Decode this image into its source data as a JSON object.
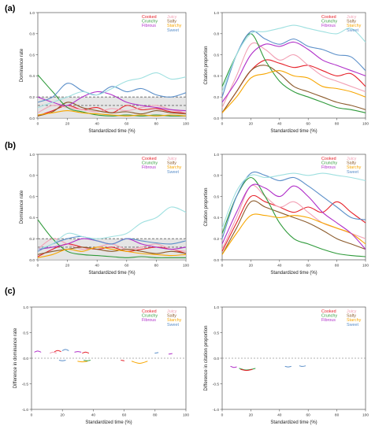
{
  "panel_labels": [
    "(a)",
    "(b)",
    "(c)"
  ],
  "chart_data": [
    {
      "type": "line",
      "panel": "(a)",
      "side": "left",
      "xlabel": "Standardized time (%)",
      "ylabel": "Dominance rate",
      "xlim": [
        0,
        100
      ],
      "ylim": [
        0,
        1
      ],
      "xticks": [
        0,
        20,
        40,
        60,
        80,
        100
      ],
      "yticks": [
        0.0,
        0.2,
        0.4,
        0.6,
        0.8,
        1.0
      ],
      "band": [
        0,
        0.2
      ],
      "reference_lines": [
        0.2,
        0.12
      ],
      "x": [
        0,
        10,
        20,
        30,
        40,
        50,
        60,
        70,
        80,
        90,
        100
      ],
      "legend": [
        "Cooked",
        "Juicy",
        "Crunchy",
        "Salty",
        "Starchy",
        "Fibrous",
        "Sweet"
      ],
      "series": [
        {
          "name": "Cooked",
          "color": "#e6212a",
          "values": [
            0.02,
            0.07,
            0.12,
            0.08,
            0.1,
            0.05,
            0.12,
            0.08,
            0.09,
            0.06,
            0.05
          ]
        },
        {
          "name": "Juicy",
          "color": "#f2a1b5",
          "values": [
            0.05,
            0.12,
            0.1,
            0.08,
            0.06,
            0.09,
            0.07,
            0.1,
            0.12,
            0.08,
            0.05
          ]
        },
        {
          "name": "Salty",
          "color": "#8b5a2b",
          "values": [
            0.02,
            0.06,
            0.15,
            0.1,
            0.07,
            0.05,
            0.06,
            0.04,
            0.07,
            0.05,
            0.04
          ]
        },
        {
          "name": "Crunchy",
          "color": "#2e9a3a",
          "values": [
            0.41,
            0.25,
            0.1,
            0.06,
            0.03,
            0.02,
            0.03,
            0.02,
            0.03,
            0.02,
            0.02
          ]
        },
        {
          "name": "Starchy",
          "color": "#f7a600",
          "values": [
            0.03,
            0.05,
            0.07,
            0.05,
            0.04,
            0.03,
            0.02,
            0.03,
            0.02,
            0.03,
            0.02
          ]
        },
        {
          "name": "Fibrous",
          "color": "#b02fc9",
          "values": [
            0.2,
            0.15,
            0.12,
            0.2,
            0.25,
            0.22,
            0.15,
            0.12,
            0.1,
            0.08,
            0.07
          ]
        },
        {
          "name": "Sweet",
          "color": "#5b8fc9",
          "values": [
            0.15,
            0.2,
            0.33,
            0.26,
            0.22,
            0.3,
            0.25,
            0.28,
            0.22,
            0.2,
            0.24
          ]
        },
        {
          "color": "#9fe0e0",
          "values": [
            0.1,
            0.15,
            0.2,
            0.25,
            0.22,
            0.28,
            0.35,
            0.38,
            0.43,
            0.37,
            0.39
          ]
        }
      ]
    },
    {
      "type": "line",
      "panel": "(a)",
      "side": "right",
      "xlabel": "Standardized time (%)",
      "ylabel": "Citation proportion",
      "xlim": [
        0,
        100
      ],
      "ylim": [
        0,
        1
      ],
      "xticks": [
        0,
        20,
        40,
        60,
        80,
        100
      ],
      "yticks": [
        0.0,
        0.2,
        0.4,
        0.6,
        0.8,
        1.0
      ],
      "x": [
        0,
        10,
        20,
        30,
        40,
        50,
        60,
        70,
        80,
        90,
        100
      ],
      "legend": [
        "Cooked",
        "Juicy",
        "Crunchy",
        "Salty",
        "Starchy",
        "Fibrous",
        "Sweet"
      ],
      "series": [
        {
          "name": "Cooked",
          "color": "#e6212a",
          "values": [
            0.05,
            0.25,
            0.45,
            0.55,
            0.52,
            0.48,
            0.5,
            0.45,
            0.4,
            0.42,
            0.3
          ]
        },
        {
          "name": "Juicy",
          "color": "#f2a1b5",
          "values": [
            0.1,
            0.4,
            0.7,
            0.65,
            0.55,
            0.6,
            0.5,
            0.4,
            0.35,
            0.3,
            0.25
          ]
        },
        {
          "name": "Salty",
          "color": "#8b5a2b",
          "values": [
            0.05,
            0.25,
            0.45,
            0.5,
            0.42,
            0.3,
            0.25,
            0.2,
            0.15,
            0.12,
            0.08
          ]
        },
        {
          "name": "Crunchy",
          "color": "#2e9a3a",
          "values": [
            0.3,
            0.6,
            0.8,
            0.55,
            0.35,
            0.25,
            0.2,
            0.15,
            0.1,
            0.08,
            0.05
          ]
        },
        {
          "name": "Starchy",
          "color": "#f7a600",
          "values": [
            0.05,
            0.2,
            0.38,
            0.42,
            0.45,
            0.4,
            0.38,
            0.3,
            0.28,
            0.25,
            0.2
          ]
        },
        {
          "name": "Fibrous",
          "color": "#b02fc9",
          "values": [
            0.15,
            0.35,
            0.6,
            0.7,
            0.68,
            0.72,
            0.65,
            0.55,
            0.5,
            0.45,
            0.4
          ]
        },
        {
          "name": "Sweet",
          "color": "#5b8fc9",
          "values": [
            0.2,
            0.6,
            0.82,
            0.75,
            0.7,
            0.75,
            0.68,
            0.65,
            0.6,
            0.58,
            0.45
          ]
        },
        {
          "color": "#9fe0e0",
          "values": [
            0.25,
            0.6,
            0.8,
            0.82,
            0.85,
            0.88,
            0.85,
            0.82,
            0.8,
            0.85,
            0.72
          ]
        }
      ]
    },
    {
      "type": "line",
      "panel": "(b)",
      "side": "left",
      "xlabel": "Standardized time (%)",
      "ylabel": "Dominance rate",
      "xlim": [
        0,
        100
      ],
      "ylim": [
        0,
        1
      ],
      "xticks": [
        0,
        20,
        40,
        60,
        80,
        100
      ],
      "yticks": [
        0.0,
        0.2,
        0.4,
        0.6,
        0.8,
        1.0
      ],
      "band": [
        0,
        0.2
      ],
      "reference_lines": [
        0.2,
        0.12
      ],
      "x": [
        0,
        10,
        20,
        30,
        40,
        50,
        60,
        70,
        80,
        90,
        100
      ],
      "legend": [
        "Cooked",
        "Juicy",
        "Crunchy",
        "Salty",
        "Starchy",
        "Fibrous",
        "Sweet"
      ],
      "series": [
        {
          "name": "Cooked",
          "color": "#e6212a",
          "values": [
            0.03,
            0.1,
            0.15,
            0.12,
            0.1,
            0.12,
            0.08,
            0.1,
            0.12,
            0.1,
            0.06
          ]
        },
        {
          "name": "Juicy",
          "color": "#f2a1b5",
          "values": [
            0.1,
            0.2,
            0.15,
            0.1,
            0.12,
            0.15,
            0.1,
            0.12,
            0.15,
            0.1,
            0.08
          ]
        },
        {
          "name": "Salty",
          "color": "#8b5a2b",
          "values": [
            0.05,
            0.08,
            0.1,
            0.12,
            0.1,
            0.08,
            0.1,
            0.08,
            0.06,
            0.08,
            0.06
          ]
        },
        {
          "name": "Crunchy",
          "color": "#2e9a3a",
          "values": [
            0.38,
            0.2,
            0.08,
            0.05,
            0.04,
            0.03,
            0.02,
            0.03,
            0.02,
            0.02,
            0.02
          ]
        },
        {
          "name": "Starchy",
          "color": "#f7a600",
          "values": [
            0.02,
            0.05,
            0.1,
            0.08,
            0.12,
            0.1,
            0.08,
            0.06,
            0.05,
            0.04,
            0.05
          ]
        },
        {
          "name": "Fibrous",
          "color": "#b02fc9",
          "values": [
            0.1,
            0.12,
            0.15,
            0.2,
            0.18,
            0.15,
            0.2,
            0.15,
            0.12,
            0.1,
            0.12
          ]
        },
        {
          "name": "Sweet",
          "color": "#5b8fc9",
          "values": [
            0.08,
            0.15,
            0.2,
            0.22,
            0.18,
            0.15,
            0.2,
            0.18,
            0.16,
            0.15,
            0.18
          ]
        },
        {
          "color": "#9fe0e0",
          "values": [
            0.1,
            0.15,
            0.25,
            0.22,
            0.2,
            0.22,
            0.25,
            0.35,
            0.4,
            0.5,
            0.45
          ]
        }
      ]
    },
    {
      "type": "line",
      "panel": "(b)",
      "side": "right",
      "xlabel": "Standardized time (%)",
      "ylabel": "Citation proportion",
      "xlim": [
        0,
        100
      ],
      "ylim": [
        0,
        1
      ],
      "xticks": [
        0,
        20,
        40,
        60,
        80,
        100
      ],
      "yticks": [
        0.0,
        0.2,
        0.4,
        0.6,
        0.8,
        1.0
      ],
      "x": [
        0,
        10,
        20,
        30,
        40,
        50,
        60,
        70,
        80,
        90,
        100
      ],
      "legend": [
        "Cooked",
        "Juicy",
        "Crunchy",
        "Salty",
        "Starchy",
        "Fibrous",
        "Sweet"
      ],
      "series": [
        {
          "name": "Cooked",
          "color": "#e6212a",
          "values": [
            0.08,
            0.35,
            0.6,
            0.55,
            0.5,
            0.45,
            0.5,
            0.45,
            0.55,
            0.45,
            0.35
          ]
        },
        {
          "name": "Juicy",
          "color": "#f2a1b5",
          "values": [
            0.1,
            0.4,
            0.7,
            0.6,
            0.5,
            0.55,
            0.45,
            0.35,
            0.3,
            0.25,
            0.2
          ]
        },
        {
          "name": "Salty",
          "color": "#8b5a2b",
          "values": [
            0.05,
            0.3,
            0.55,
            0.5,
            0.45,
            0.4,
            0.35,
            0.28,
            0.2,
            0.15,
            0.1
          ]
        },
        {
          "name": "Crunchy",
          "color": "#2e9a3a",
          "values": [
            0.25,
            0.6,
            0.78,
            0.6,
            0.35,
            0.2,
            0.15,
            0.1,
            0.06,
            0.04,
            0.03
          ]
        },
        {
          "name": "Starchy",
          "color": "#f7a600",
          "values": [
            0.05,
            0.25,
            0.42,
            0.42,
            0.4,
            0.42,
            0.4,
            0.35,
            0.3,
            0.25,
            0.15
          ]
        },
        {
          "name": "Fibrous",
          "color": "#b02fc9",
          "values": [
            0.15,
            0.45,
            0.7,
            0.68,
            0.6,
            0.7,
            0.6,
            0.45,
            0.35,
            0.25,
            0.1
          ]
        },
        {
          "name": "Sweet",
          "color": "#5b8fc9",
          "values": [
            0.2,
            0.6,
            0.82,
            0.8,
            0.75,
            0.78,
            0.7,
            0.6,
            0.5,
            0.4,
            0.38
          ]
        },
        {
          "color": "#9fe0e0",
          "values": [
            0.3,
            0.65,
            0.8,
            0.78,
            0.8,
            0.82,
            0.8,
            0.82,
            0.8,
            0.78,
            0.75
          ]
        }
      ]
    },
    {
      "type": "line",
      "panel": "(c)",
      "side": "left",
      "xlabel": "Standardized time (%)",
      "ylabel": "Difference in dominance rate",
      "xlim": [
        0,
        100
      ],
      "ylim": [
        -1,
        1
      ],
      "xticks": [
        0,
        20,
        40,
        60,
        80,
        100
      ],
      "yticks": [
        -1.0,
        -0.5,
        0.0,
        0.5,
        1.0
      ],
      "baseline": 0,
      "legend": [
        "Cooked",
        "Juicy",
        "Crunchy",
        "Salty",
        "Starchy",
        "Fibrous",
        "Sweet"
      ],
      "segments": [
        {
          "color": "#b02fc9",
          "x": [
            2,
            4,
            6
          ],
          "values": [
            0.12,
            0.14,
            0.12
          ]
        },
        {
          "color": "#f2a1b5",
          "x": [
            12,
            14,
            16
          ],
          "values": [
            0.1,
            0.12,
            0.1
          ]
        },
        {
          "color": "#e6212a",
          "x": [
            15,
            17,
            19
          ],
          "values": [
            0.13,
            0.15,
            0.13
          ]
        },
        {
          "color": "#5b8fc9",
          "x": [
            20,
            22,
            24
          ],
          "values": [
            0.15,
            0.17,
            0.15
          ]
        },
        {
          "color": "#b02fc9",
          "x": [
            28,
            30,
            32
          ],
          "values": [
            0.12,
            0.13,
            0.12
          ]
        },
        {
          "color": "#e6212a",
          "x": [
            33,
            35,
            37
          ],
          "values": [
            0.1,
            0.12,
            0.1
          ]
        },
        {
          "color": "#f7a600",
          "x": [
            30,
            33,
            36
          ],
          "values": [
            -0.06,
            -0.07,
            -0.06
          ]
        },
        {
          "color": "#2e9a3a",
          "x": [
            34,
            36,
            38
          ],
          "values": [
            -0.04,
            -0.05,
            -0.04
          ]
        },
        {
          "color": "#5b8fc9",
          "x": [
            18,
            20,
            22
          ],
          "values": [
            -0.04,
            -0.05,
            -0.04
          ]
        },
        {
          "color": "#f7a600",
          "x": [
            65,
            70,
            75
          ],
          "values": [
            -0.06,
            -0.1,
            -0.06
          ]
        },
        {
          "color": "#5b8fc9",
          "x": [
            80,
            82
          ],
          "values": [
            0.1,
            0.11
          ]
        },
        {
          "color": "#b02fc9",
          "x": [
            89,
            91
          ],
          "values": [
            0.08,
            0.09
          ]
        },
        {
          "color": "#e6212a",
          "x": [
            58,
            60
          ],
          "values": [
            -0.04,
            -0.05
          ]
        }
      ]
    },
    {
      "type": "line",
      "panel": "(c)",
      "side": "right",
      "xlabel": "Standardized time (%)",
      "ylabel": "Difference in citation proportion",
      "xlim": [
        0,
        100
      ],
      "ylim": [
        -1,
        1
      ],
      "xticks": [
        0,
        20,
        40,
        60,
        80,
        100
      ],
      "yticks": [
        -1.0,
        -0.5,
        0.0,
        0.5,
        1.0
      ],
      "baseline": 0,
      "legend": [
        "Cooked",
        "Juicy",
        "Crunchy",
        "Salty",
        "Starchy",
        "Fibrous",
        "Sweet"
      ],
      "segments": [
        {
          "color": "#b02fc9",
          "x": [
            6,
            8,
            10
          ],
          "values": [
            -0.16,
            -0.18,
            -0.17
          ]
        },
        {
          "color": "#2e9a3a",
          "x": [
            12,
            16,
            20,
            23
          ],
          "values": [
            -0.2,
            -0.23,
            -0.22,
            -0.2
          ]
        },
        {
          "color": "#e6212a",
          "x": [
            13,
            17,
            21
          ],
          "values": [
            -0.22,
            -0.24,
            -0.22
          ]
        },
        {
          "color": "#5b8fc9",
          "x": [
            44,
            46,
            48
          ],
          "values": [
            -0.16,
            -0.17,
            -0.16
          ]
        },
        {
          "color": "#5b8fc9",
          "x": [
            54,
            56,
            58
          ],
          "values": [
            -0.15,
            -0.16,
            -0.15
          ]
        }
      ]
    }
  ]
}
